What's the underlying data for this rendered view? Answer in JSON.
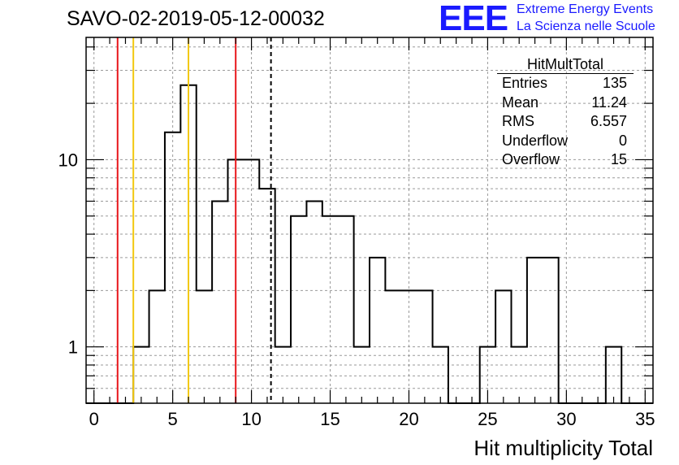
{
  "title": "SAVO-02-2019-05-12-00032",
  "logo": {
    "mark": "EEE",
    "line1": "Extreme Energy Events",
    "line2": "La Scienza nelle Scuole",
    "color": "#1a1aff"
  },
  "stats": {
    "name": "HitMultTotal",
    "rows": [
      {
        "label": "Entries",
        "value": "135"
      },
      {
        "label": "Mean",
        "value": "11.24"
      },
      {
        "label": "RMS",
        "value": "6.557"
      },
      {
        "label": "Underflow",
        "value": "0"
      },
      {
        "label": "Overflow",
        "value": "15"
      }
    ]
  },
  "chart_data": {
    "type": "histogram",
    "xlabel": "Hit multiplicity Total",
    "ylabel": "",
    "xlim": [
      -0.5,
      35.5
    ],
    "ylim": [
      0.5,
      45
    ],
    "log_y": true,
    "grid": true,
    "bin_width": 1,
    "bin_centers": [
      0,
      1,
      2,
      3,
      4,
      5,
      6,
      7,
      8,
      9,
      10,
      11,
      12,
      13,
      14,
      15,
      16,
      17,
      18,
      19,
      20,
      21,
      22,
      23,
      24,
      25,
      26,
      27,
      28,
      29,
      30,
      31,
      32,
      33,
      34,
      35
    ],
    "counts": [
      0,
      0,
      0,
      1,
      2,
      14,
      25,
      2,
      6,
      10,
      10,
      7,
      1,
      5,
      6,
      5,
      5,
      1,
      3,
      2,
      2,
      2,
      1,
      0,
      0,
      1,
      2,
      1,
      3,
      3,
      0,
      0,
      0,
      1,
      0,
      0
    ],
    "x_ticks": [
      "0",
      "5",
      "10",
      "15",
      "20",
      "25",
      "30",
      "35"
    ],
    "y_ticks": [
      "1",
      "10"
    ],
    "vertical_lines": [
      {
        "x": 1.5,
        "color": "#e8161b",
        "style": "solid"
      },
      {
        "x": 2.5,
        "color": "#f2c80f",
        "style": "solid"
      },
      {
        "x": 6.0,
        "color": "#f2c80f",
        "style": "solid"
      },
      {
        "x": 9.0,
        "color": "#e8161b",
        "style": "solid"
      },
      {
        "x": 11.24,
        "color": "#000000",
        "style": "dashed"
      }
    ]
  }
}
